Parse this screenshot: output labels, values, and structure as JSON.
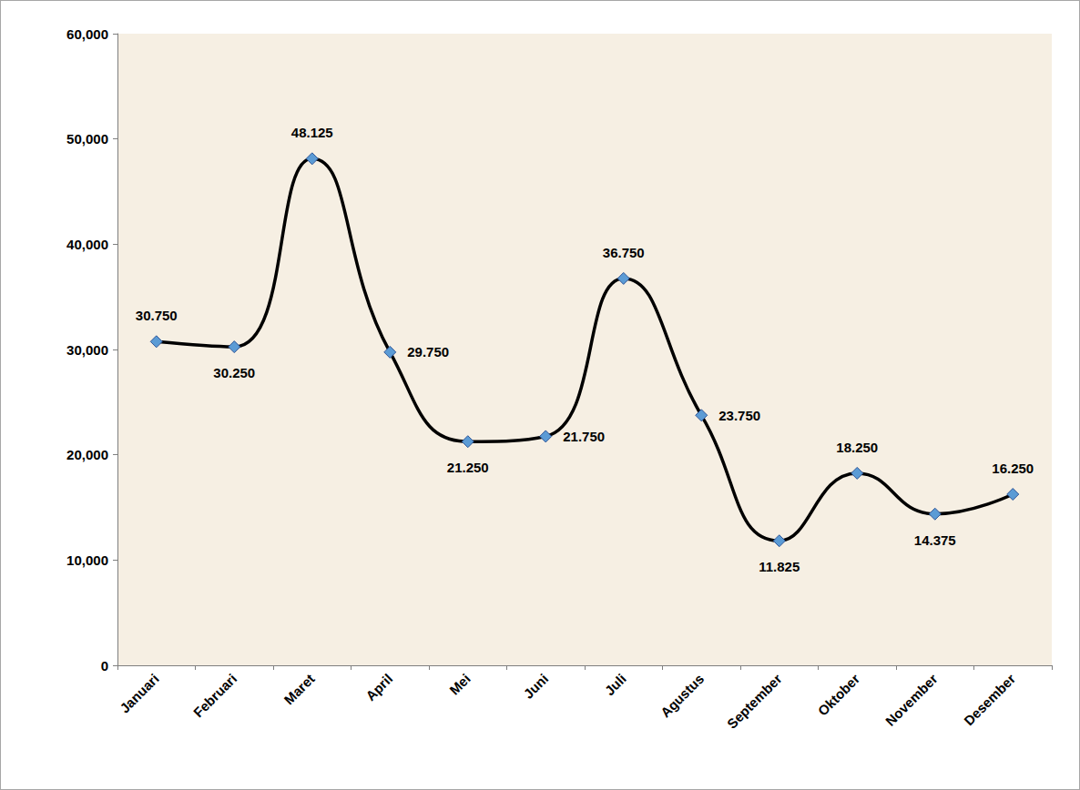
{
  "chart_data": {
    "type": "line",
    "categories": [
      "Januari",
      "Februari",
      "Maret",
      "April",
      "Mei",
      "Juni",
      "Juli",
      "Agustus",
      "September",
      "Oktober",
      "November",
      "Desember"
    ],
    "values": [
      30750,
      30250,
      48125,
      29750,
      21250,
      21750,
      36750,
      23750,
      11825,
      18250,
      14375,
      16250
    ],
    "value_labels": [
      "30.750",
      "30.250",
      "48.125",
      "29.750",
      "21.250",
      "21.750",
      "36.750",
      "23.750",
      "11.825",
      "18.250",
      "14.375",
      "16.250"
    ],
    "color": "#000000",
    "marker": "diamond",
    "line_style": "smooth",
    "ylim": [
      0,
      60000
    ],
    "yticks": [
      0,
      {
        "value": 10000,
        "label": "10,000"
      },
      {
        "value": 20000,
        "label": "20,000"
      },
      {
        "value": 30000,
        "label": "30,000"
      },
      {
        "value": 40000,
        "label": "40,000"
      },
      {
        "value": 50000,
        "label": "50,000"
      },
      {
        "value": 60000,
        "label": "60,000"
      }
    ],
    "grid": false,
    "data_labels": true
  }
}
